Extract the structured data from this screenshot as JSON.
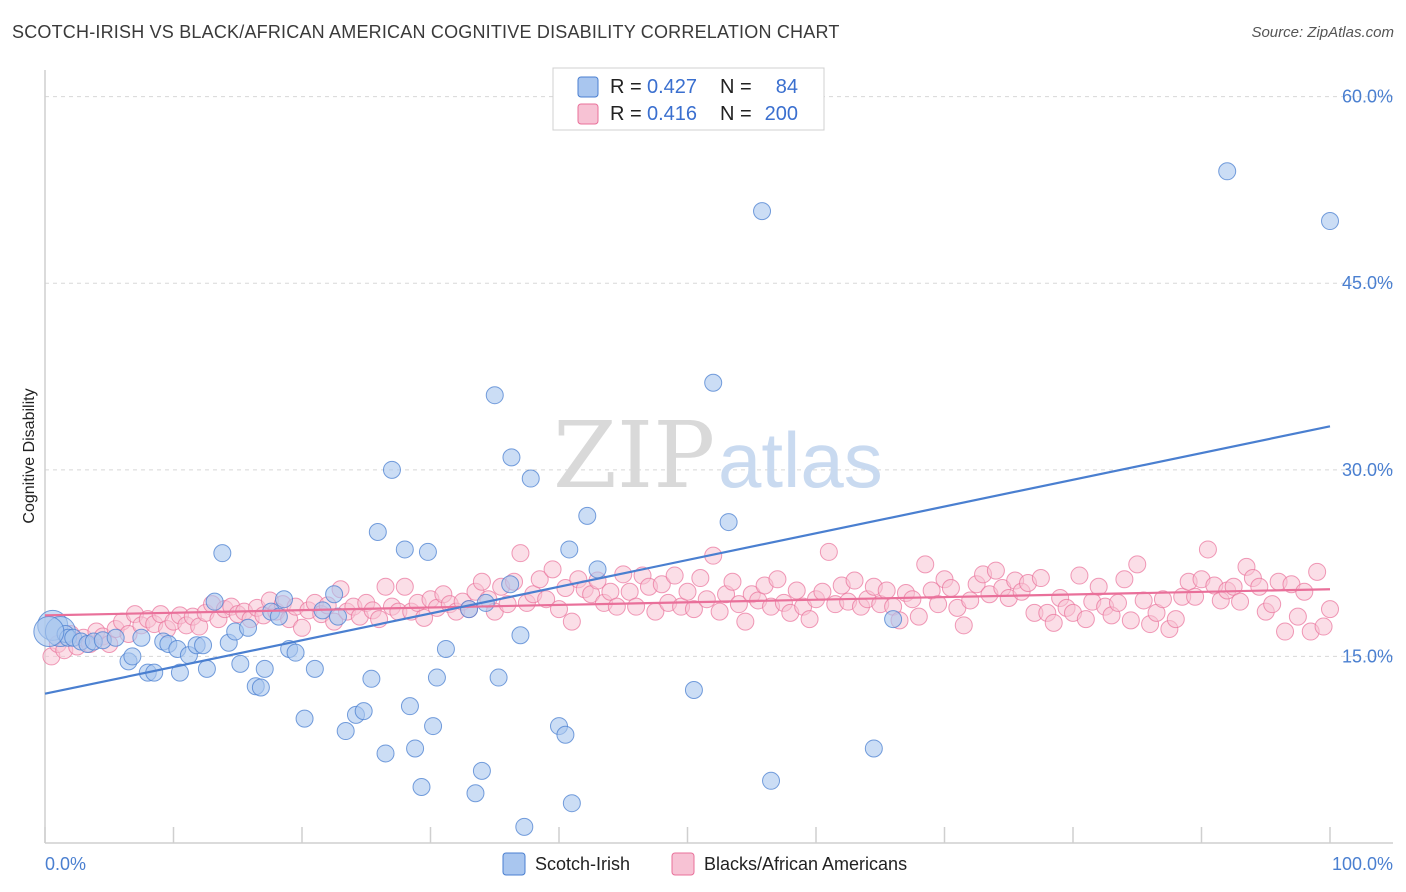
{
  "title": "SCOTCH-IRISH VS BLACK/AFRICAN AMERICAN COGNITIVE DISABILITY CORRELATION CHART",
  "source": "Source: ZipAtlas.com",
  "watermark": {
    "zip": "ZIP",
    "atlas": "atlas"
  },
  "colors": {
    "blue": "#4a7fd0",
    "blue_fill": "#a9c6ef",
    "pink": "#e9709a",
    "pink_fill": "#f7c2d4",
    "grid": "#d8d8d8"
  },
  "legend": {
    "r_label": "R =",
    "n_label": "N =",
    "rows": [
      {
        "r": "0.427",
        "n": "84"
      },
      {
        "r": "0.416",
        "n": "200"
      }
    ]
  },
  "chart_data": {
    "type": "scatter",
    "title": "SCOTCH-IRISH VS BLACK/AFRICAN AMERICAN COGNITIVE DISABILITY CORRELATION CHART",
    "xlabel": "",
    "ylabel": "Cognitive Disability",
    "xlim": [
      0,
      100
    ],
    "ylim": [
      0,
      61.5
    ],
    "x_tick_labels": [
      "0.0%",
      "100.0%"
    ],
    "y_ticks": [
      15,
      30,
      45,
      60
    ],
    "y_tick_labels": [
      "15.0%",
      "30.0%",
      "45.0%",
      "60.0%"
    ],
    "grid": true,
    "legend_position": "top-center",
    "series": [
      {
        "name": "Scotch-Irish",
        "color": "#4a7fd0",
        "trend": {
          "x": [
            0,
            100
          ],
          "y": [
            12.0,
            33.5
          ]
        },
        "points": [
          [
            0.6,
            17.5
          ],
          [
            1.2,
            17.0
          ],
          [
            1.6,
            16.8
          ],
          [
            1.8,
            16.5
          ],
          [
            2.2,
            16.5
          ],
          [
            2.8,
            16.2
          ],
          [
            3.3,
            16.0
          ],
          [
            3.8,
            16.2
          ],
          [
            4.5,
            16.3
          ],
          [
            5.5,
            16.5
          ],
          [
            6.5,
            14.6
          ],
          [
            6.8,
            15.0
          ],
          [
            7.5,
            16.5
          ],
          [
            8.0,
            13.7
          ],
          [
            8.5,
            13.7
          ],
          [
            9.2,
            16.2
          ],
          [
            9.6,
            16.0
          ],
          [
            10.3,
            15.6
          ],
          [
            10.5,
            13.7
          ],
          [
            11.2,
            15.1
          ],
          [
            11.8,
            15.9
          ],
          [
            12.3,
            15.9
          ],
          [
            12.6,
            14.0
          ],
          [
            13.2,
            19.4
          ],
          [
            13.8,
            23.3
          ],
          [
            14.3,
            16.1
          ],
          [
            14.8,
            17.0
          ],
          [
            15.2,
            14.4
          ],
          [
            15.8,
            17.3
          ],
          [
            16.4,
            12.6
          ],
          [
            16.8,
            12.5
          ],
          [
            17.1,
            14.0
          ],
          [
            17.6,
            18.6
          ],
          [
            18.2,
            18.2
          ],
          [
            18.6,
            19.6
          ],
          [
            19.0,
            15.6
          ],
          [
            19.5,
            15.3
          ],
          [
            20.2,
            10.0
          ],
          [
            21.0,
            14.0
          ],
          [
            21.6,
            18.7
          ],
          [
            22.5,
            20.0
          ],
          [
            22.8,
            18.2
          ],
          [
            23.4,
            9.0
          ],
          [
            24.2,
            10.3
          ],
          [
            24.8,
            10.6
          ],
          [
            25.4,
            13.2
          ],
          [
            25.9,
            25.0
          ],
          [
            26.5,
            7.2
          ],
          [
            27.0,
            30.0
          ],
          [
            28.0,
            23.6
          ],
          [
            28.4,
            11.0
          ],
          [
            28.8,
            7.6
          ],
          [
            29.3,
            4.5
          ],
          [
            29.8,
            23.4
          ],
          [
            30.2,
            9.4
          ],
          [
            30.5,
            13.3
          ],
          [
            31.2,
            15.6
          ],
          [
            33.0,
            18.8
          ],
          [
            33.5,
            4.0
          ],
          [
            34.0,
            5.8
          ],
          [
            34.3,
            19.3
          ],
          [
            35.0,
            36.0
          ],
          [
            35.3,
            13.3
          ],
          [
            36.2,
            20.8
          ],
          [
            36.3,
            31.0
          ],
          [
            37.0,
            16.7
          ],
          [
            37.3,
            1.3
          ],
          [
            37.8,
            29.3
          ],
          [
            40.0,
            9.4
          ],
          [
            40.5,
            8.7
          ],
          [
            40.8,
            23.6
          ],
          [
            41.0,
            3.2
          ],
          [
            42.2,
            26.3
          ],
          [
            43.0,
            22.0
          ],
          [
            50.5,
            12.3
          ],
          [
            52.0,
            37.0
          ],
          [
            53.2,
            25.8
          ],
          [
            55.8,
            50.8
          ],
          [
            56.5,
            5.0
          ],
          [
            64.5,
            7.6
          ],
          [
            66.0,
            18.0
          ],
          [
            92.0,
            54.0
          ],
          [
            100.0,
            50.0
          ],
          [
            0.3,
            17.0
          ]
        ]
      },
      {
        "name": "Blacks/African Americans",
        "color": "#e9709a",
        "trend": {
          "x": [
            0,
            100
          ],
          "y": [
            18.3,
            20.4
          ]
        },
        "points": [
          [
            0.5,
            15.0
          ],
          [
            1.0,
            16.0
          ],
          [
            1.5,
            15.5
          ],
          [
            2.0,
            16.8
          ],
          [
            2.5,
            15.8
          ],
          [
            3.0,
            16.5
          ],
          [
            3.5,
            16.0
          ],
          [
            4.0,
            17.0
          ],
          [
            4.5,
            16.6
          ],
          [
            5.0,
            16.0
          ],
          [
            5.5,
            17.2
          ],
          [
            6.0,
            17.8
          ],
          [
            6.5,
            16.8
          ],
          [
            7.0,
            18.4
          ],
          [
            7.5,
            17.5
          ],
          [
            8.0,
            18.0
          ],
          [
            8.5,
            17.6
          ],
          [
            9.0,
            18.4
          ],
          [
            9.5,
            17.2
          ],
          [
            10.0,
            17.8
          ],
          [
            10.5,
            18.3
          ],
          [
            11.0,
            17.5
          ],
          [
            11.5,
            18.2
          ],
          [
            12.0,
            17.4
          ],
          [
            12.5,
            18.5
          ],
          [
            13.0,
            19.2
          ],
          [
            13.5,
            18.0
          ],
          [
            14.0,
            18.8
          ],
          [
            14.5,
            19.0
          ],
          [
            15.0,
            18.4
          ],
          [
            15.5,
            18.6
          ],
          [
            16.0,
            18.0
          ],
          [
            16.5,
            18.9
          ],
          [
            17.0,
            18.3
          ],
          [
            17.5,
            19.5
          ],
          [
            18.0,
            18.6
          ],
          [
            18.5,
            19.2
          ],
          [
            19.0,
            18.0
          ],
          [
            19.5,
            19.0
          ],
          [
            20.0,
            17.3
          ],
          [
            20.5,
            18.7
          ],
          [
            21.0,
            19.3
          ],
          [
            21.5,
            18.4
          ],
          [
            22.0,
            19.1
          ],
          [
            22.5,
            17.8
          ],
          [
            23.0,
            20.4
          ],
          [
            23.5,
            18.6
          ],
          [
            24.0,
            19.0
          ],
          [
            24.5,
            18.2
          ],
          [
            25.0,
            19.3
          ],
          [
            25.5,
            18.7
          ],
          [
            26.0,
            18.0
          ],
          [
            26.5,
            20.6
          ],
          [
            27.0,
            19.0
          ],
          [
            27.5,
            18.6
          ],
          [
            28.0,
            20.6
          ],
          [
            28.5,
            18.6
          ],
          [
            29.0,
            19.3
          ],
          [
            29.5,
            18.1
          ],
          [
            30.0,
            19.6
          ],
          [
            30.5,
            18.9
          ],
          [
            31.0,
            20.0
          ],
          [
            31.5,
            19.2
          ],
          [
            32.0,
            18.6
          ],
          [
            32.5,
            19.4
          ],
          [
            33.0,
            18.8
          ],
          [
            33.5,
            20.2
          ],
          [
            34.0,
            21.0
          ],
          [
            34.5,
            19.6
          ],
          [
            35.0,
            18.6
          ],
          [
            35.5,
            20.6
          ],
          [
            36.0,
            19.2
          ],
          [
            36.5,
            21.0
          ],
          [
            37.0,
            23.3
          ],
          [
            37.5,
            19.3
          ],
          [
            38.0,
            20.0
          ],
          [
            38.5,
            21.2
          ],
          [
            39.0,
            19.6
          ],
          [
            39.5,
            22.0
          ],
          [
            40.0,
            18.8
          ],
          [
            40.5,
            20.5
          ],
          [
            41.0,
            17.8
          ],
          [
            41.5,
            21.2
          ],
          [
            42.0,
            20.4
          ],
          [
            42.5,
            20.0
          ],
          [
            43.0,
            21.1
          ],
          [
            43.5,
            19.3
          ],
          [
            44.0,
            20.2
          ],
          [
            44.5,
            19.0
          ],
          [
            45.0,
            21.6
          ],
          [
            45.5,
            20.2
          ],
          [
            46.0,
            19.0
          ],
          [
            46.5,
            21.5
          ],
          [
            47.0,
            20.6
          ],
          [
            47.5,
            18.6
          ],
          [
            48.0,
            20.8
          ],
          [
            48.5,
            19.3
          ],
          [
            49.0,
            21.5
          ],
          [
            49.5,
            19.0
          ],
          [
            50.0,
            20.2
          ],
          [
            50.5,
            18.8
          ],
          [
            51.0,
            21.3
          ],
          [
            51.5,
            19.6
          ],
          [
            52.0,
            23.1
          ],
          [
            52.5,
            18.6
          ],
          [
            53.0,
            20.0
          ],
          [
            53.5,
            21.0
          ],
          [
            54.0,
            19.2
          ],
          [
            54.5,
            17.8
          ],
          [
            55.0,
            20.0
          ],
          [
            55.5,
            19.5
          ],
          [
            56.0,
            20.7
          ],
          [
            56.5,
            19.0
          ],
          [
            57.0,
            21.2
          ],
          [
            57.5,
            19.3
          ],
          [
            58.0,
            18.5
          ],
          [
            58.5,
            20.3
          ],
          [
            59.0,
            19.0
          ],
          [
            59.5,
            18.0
          ],
          [
            60.0,
            19.6
          ],
          [
            60.5,
            20.2
          ],
          [
            61.0,
            23.4
          ],
          [
            61.5,
            19.2
          ],
          [
            62.0,
            20.7
          ],
          [
            62.5,
            19.4
          ],
          [
            63.0,
            21.1
          ],
          [
            63.5,
            19.0
          ],
          [
            64.0,
            19.6
          ],
          [
            64.5,
            20.6
          ],
          [
            65.0,
            19.2
          ],
          [
            65.5,
            20.3
          ],
          [
            66.0,
            19.0
          ],
          [
            66.5,
            17.9
          ],
          [
            67.0,
            20.1
          ],
          [
            67.5,
            19.6
          ],
          [
            68.0,
            18.2
          ],
          [
            68.5,
            22.4
          ],
          [
            69.0,
            20.3
          ],
          [
            69.5,
            19.2
          ],
          [
            70.0,
            21.2
          ],
          [
            70.5,
            20.5
          ],
          [
            71.0,
            18.9
          ],
          [
            71.5,
            17.5
          ],
          [
            72.0,
            19.5
          ],
          [
            72.5,
            20.8
          ],
          [
            73.0,
            21.6
          ],
          [
            73.5,
            20.0
          ],
          [
            74.0,
            21.9
          ],
          [
            74.5,
            20.5
          ],
          [
            75.0,
            19.7
          ],
          [
            75.5,
            21.1
          ],
          [
            76.0,
            20.2
          ],
          [
            76.5,
            20.9
          ],
          [
            77.0,
            18.5
          ],
          [
            77.5,
            21.3
          ],
          [
            78.0,
            18.5
          ],
          [
            78.5,
            17.7
          ],
          [
            79.0,
            19.7
          ],
          [
            79.5,
            18.9
          ],
          [
            80.0,
            18.5
          ],
          [
            80.5,
            21.5
          ],
          [
            81.0,
            18.0
          ],
          [
            81.5,
            19.4
          ],
          [
            82.0,
            20.6
          ],
          [
            82.5,
            19.0
          ],
          [
            83.0,
            18.3
          ],
          [
            83.5,
            19.3
          ],
          [
            84.0,
            21.2
          ],
          [
            84.5,
            17.9
          ],
          [
            85.0,
            22.4
          ],
          [
            85.5,
            19.5
          ],
          [
            86.0,
            17.6
          ],
          [
            86.5,
            18.5
          ],
          [
            87.0,
            19.6
          ],
          [
            87.5,
            17.2
          ],
          [
            88.0,
            18.0
          ],
          [
            88.5,
            19.8
          ],
          [
            89.0,
            21.0
          ],
          [
            89.5,
            19.8
          ],
          [
            90.0,
            21.2
          ],
          [
            90.5,
            23.6
          ],
          [
            91.0,
            20.7
          ],
          [
            91.5,
            19.5
          ],
          [
            92.0,
            20.3
          ],
          [
            92.5,
            20.6
          ],
          [
            93.0,
            19.4
          ],
          [
            93.5,
            22.2
          ],
          [
            94.0,
            21.3
          ],
          [
            94.5,
            20.6
          ],
          [
            95.0,
            18.6
          ],
          [
            95.5,
            19.2
          ],
          [
            96.0,
            21.0
          ],
          [
            96.5,
            17.0
          ],
          [
            97.0,
            20.8
          ],
          [
            97.5,
            18.2
          ],
          [
            98.0,
            20.2
          ],
          [
            98.5,
            17.0
          ],
          [
            99.0,
            21.8
          ],
          [
            99.5,
            17.4
          ],
          [
            100.0,
            18.8
          ]
        ]
      }
    ]
  },
  "bottom_legend": [
    {
      "label": "Scotch-Irish"
    },
    {
      "label": "Blacks/African Americans"
    }
  ]
}
